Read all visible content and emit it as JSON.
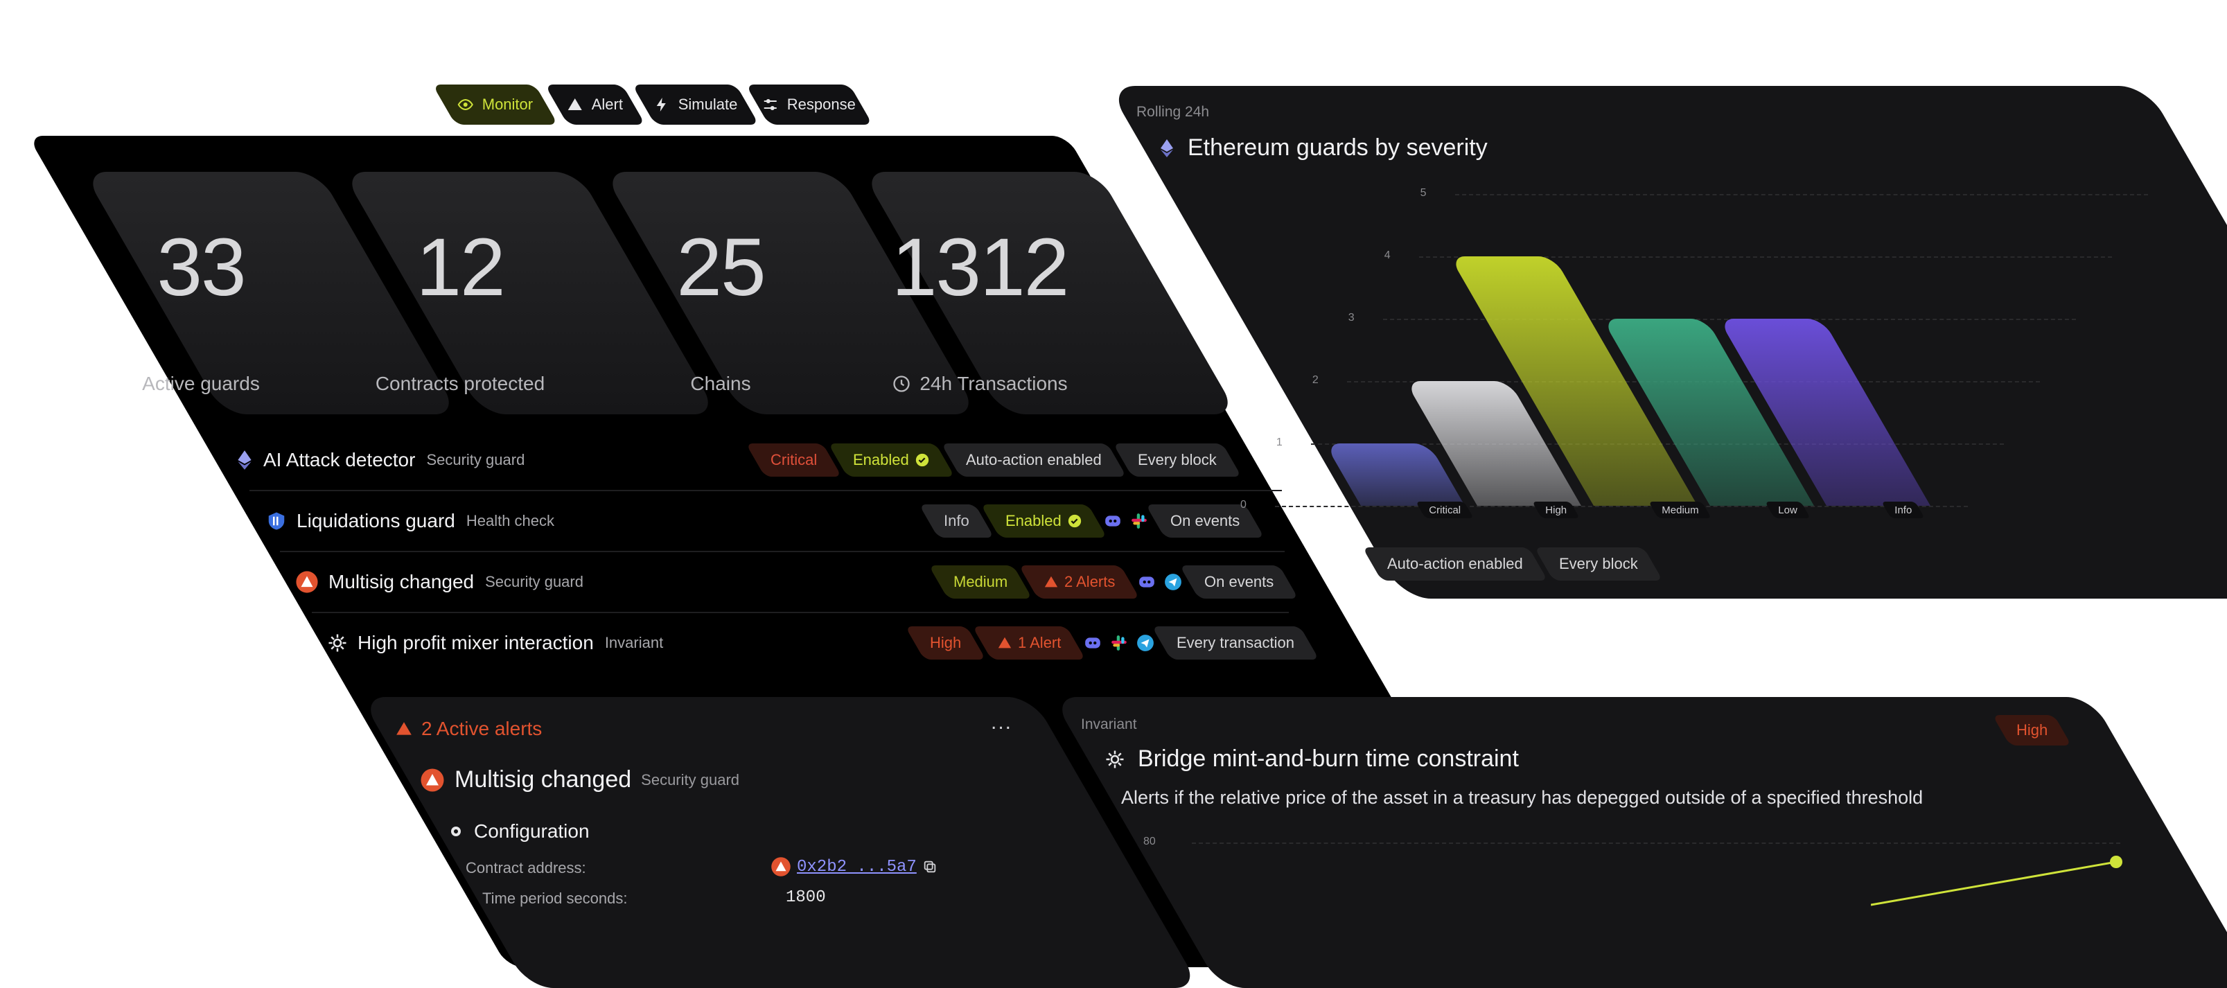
{
  "tabs": [
    {
      "label": "Monitor",
      "icon": "eye-icon",
      "active": true
    },
    {
      "label": "Alert",
      "icon": "warning-icon",
      "active": false
    },
    {
      "label": "Simulate",
      "icon": "bolt-icon",
      "active": false
    },
    {
      "label": "Response",
      "icon": "sliders-icon",
      "active": false
    }
  ],
  "stats": [
    {
      "value": "33",
      "label": "Active guards"
    },
    {
      "value": "12",
      "label": "Contracts protected"
    },
    {
      "value": "25",
      "label": "Chains"
    },
    {
      "value": "1312",
      "label": "24h Transactions",
      "icon": "clock-icon"
    }
  ],
  "guards": [
    {
      "name": "AI Attack detector",
      "type": "Security guard",
      "icon": "ethereum-icon",
      "chips": [
        "Critical",
        "Enabled",
        "Auto-action enabled",
        "Every block"
      ]
    },
    {
      "name": "Liquidations guard",
      "type": "Health check",
      "icon": "shield-icon",
      "chips": [
        "Info",
        "Enabled",
        "On events"
      ]
    },
    {
      "name": "Multisig changed",
      "type": "Security guard",
      "icon": "alert-circle-icon",
      "chips": [
        "Medium",
        "2 Alerts",
        "On events"
      ]
    },
    {
      "name": "High profit mixer interaction",
      "type": "Invariant",
      "icon": "gear-icon",
      "chips": [
        "High",
        "1 Alert",
        "Every transaction"
      ]
    }
  ],
  "severity_chart": {
    "kicker": "Rolling 24h",
    "title": "Ethereum guards by severity",
    "footer_chips": [
      "Auto-action enabled",
      "Every block"
    ]
  },
  "chart_data": {
    "type": "bar",
    "title": "Ethereum guards by severity",
    "categories": [
      "Critical",
      "High",
      "Medium",
      "Low",
      "Info"
    ],
    "values": [
      1,
      2,
      4,
      3,
      3
    ],
    "colors": [
      "#5b5fb8",
      "#d5d5d8",
      "#c0d12a",
      "#3aa57f",
      "#6a4ed8"
    ],
    "ylim": [
      0,
      5
    ],
    "yticks": [
      0,
      1,
      2,
      3,
      4,
      5
    ],
    "grid": true
  },
  "alerts": {
    "header": "2 Active alerts",
    "more": "...",
    "title": "Multisig changed",
    "type": "Security guard",
    "section": "Configuration",
    "fields": [
      {
        "label": "Contract address:",
        "value": "0x2b2 ...5a7"
      },
      {
        "label": "Time period seconds:",
        "value": "1800"
      }
    ]
  },
  "invariant": {
    "kicker": "Invariant",
    "title": "Bridge mint-and-burn time constraint",
    "badge": "High",
    "description": "Alerts if the relative price of the asset in a treasury has depegged outside of a specified threshold",
    "ytick": "80"
  },
  "theme": {
    "accent": "#cfe33a",
    "danger": "#e2532f",
    "bg": "#000000"
  }
}
